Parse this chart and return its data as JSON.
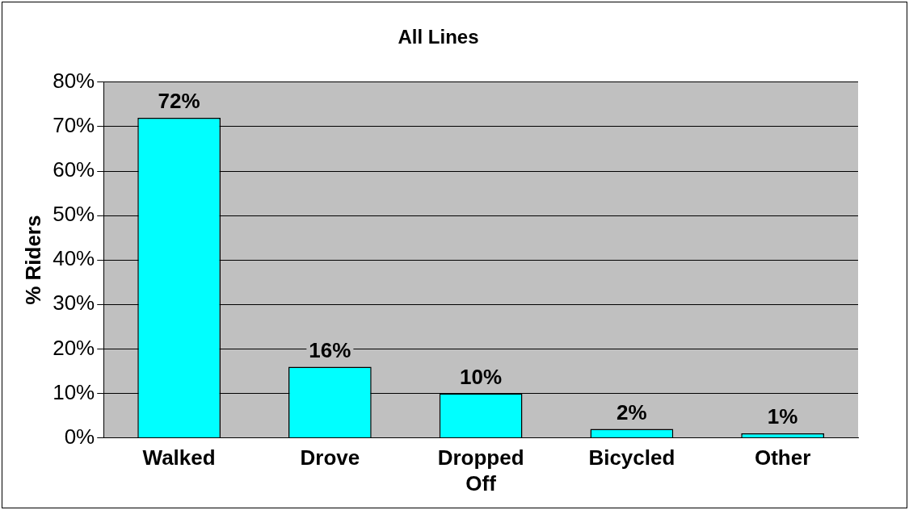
{
  "chart_data": {
    "type": "bar",
    "title": "All Lines",
    "ylabel": "% Riders",
    "categories": [
      "Walked",
      "Drove",
      "Dropped Off",
      "Bicycled",
      "Other"
    ],
    "values": [
      72,
      16,
      10,
      2,
      1
    ],
    "color": "#00ffff",
    "value_labels": [
      "72%",
      "16%",
      "10%",
      "2%",
      "1%"
    ],
    "ylim": [
      0,
      80
    ],
    "yticks": [
      {
        "value": 0,
        "label": "0%"
      },
      {
        "value": 10,
        "label": "10%"
      },
      {
        "value": 20,
        "label": "20%"
      },
      {
        "value": 30,
        "label": "30%"
      },
      {
        "value": 40,
        "label": "40%"
      },
      {
        "value": 50,
        "label": "50%"
      },
      {
        "value": 60,
        "label": "60%"
      },
      {
        "value": 70,
        "label": "70%"
      },
      {
        "value": 80,
        "label": "80%"
      }
    ],
    "grid": "y",
    "legend": false
  }
}
